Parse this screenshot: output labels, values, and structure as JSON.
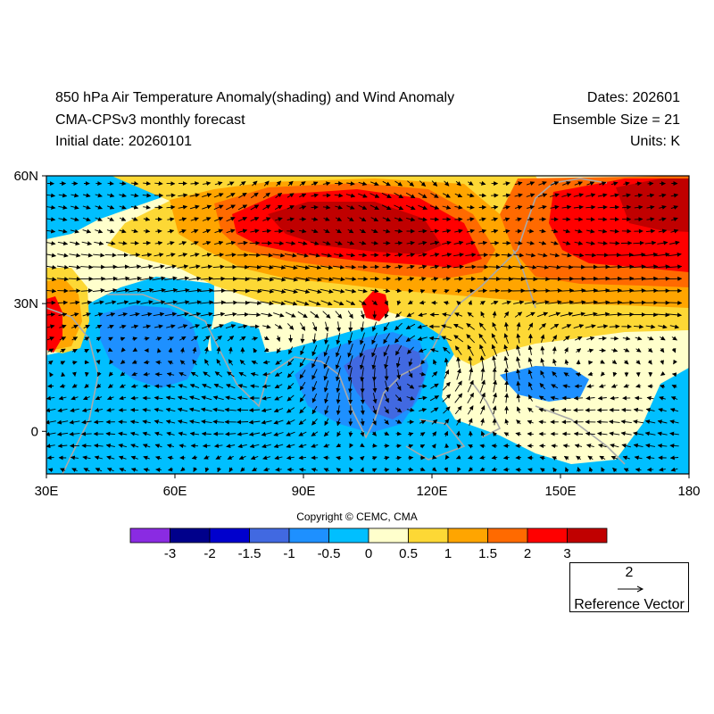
{
  "header": {
    "title": "850 hPa Air Temperature Anomaly(shading) and Wind Anomaly",
    "subtitle": "CMA-CPSv3 monthly forecast",
    "initial_date": "Initial date: 20260101",
    "dates": "Dates: 202601",
    "ensemble": "Ensemble Size = 21",
    "units": "Units: K"
  },
  "copyright": "Copyright © CEMC, CMA",
  "map": {
    "lon_range": [
      30,
      180
    ],
    "lat_range": [
      -10,
      60
    ],
    "x_ticks": [
      {
        "lon": 30,
        "label": "30E"
      },
      {
        "lon": 60,
        "label": "60E"
      },
      {
        "lon": 90,
        "label": "90E"
      },
      {
        "lon": 120,
        "label": "120E"
      },
      {
        "lon": 150,
        "label": "150E"
      },
      {
        "lon": 180,
        "label": "180"
      }
    ],
    "y_ticks": [
      {
        "lat": 60,
        "label": "60N"
      },
      {
        "lat": 30,
        "label": "30N"
      },
      {
        "lat": 0,
        "label": "0"
      }
    ]
  },
  "colorbar": {
    "colors": [
      "#8a2be2",
      "#00008b",
      "#0000cd",
      "#4169e1",
      "#1e90ff",
      "#00bfff",
      "#ffffcc",
      "#fdd835",
      "#ffa500",
      "#ff6a00",
      "#ff0000",
      "#c00000"
    ],
    "labels": [
      "-3",
      "-2",
      "-1.5",
      "-1",
      "-0.5",
      "0",
      "0.5",
      "1",
      "1.5",
      "2",
      "3"
    ]
  },
  "reference_vector": {
    "magnitude": "2",
    "label": "Reference Vector"
  }
}
